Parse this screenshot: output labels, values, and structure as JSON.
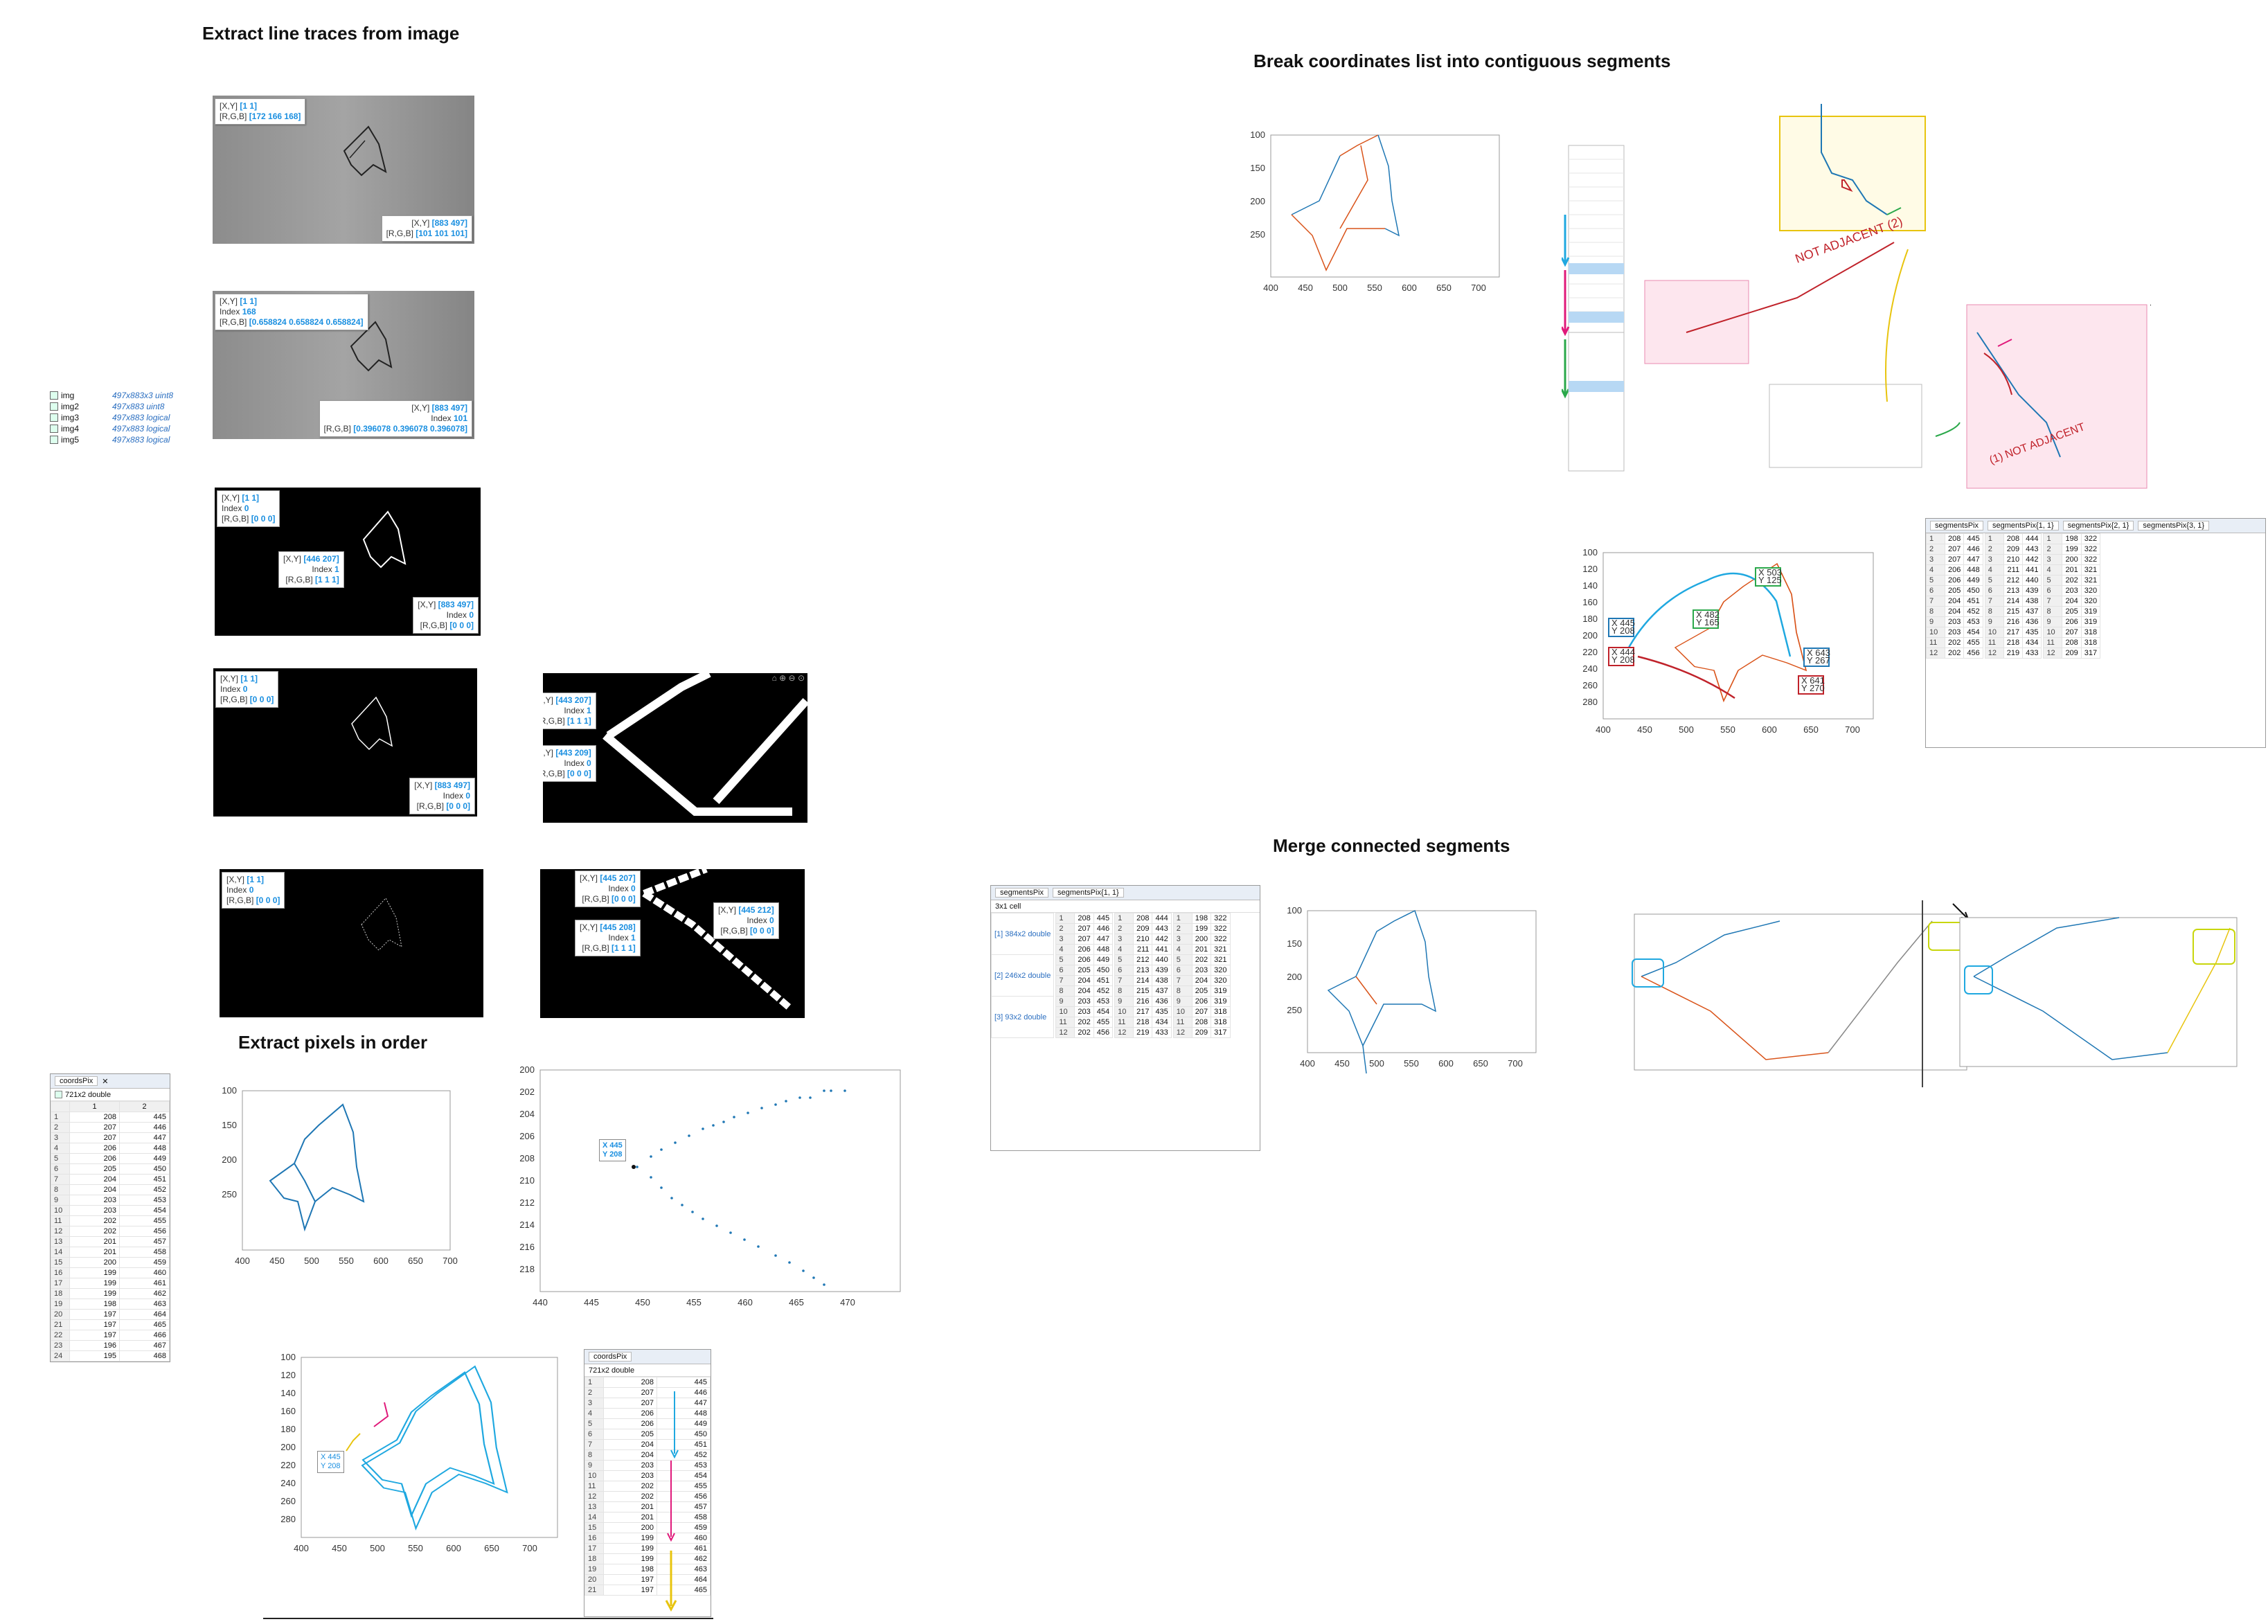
{
  "titles": {
    "extract_line": "Extract line traces from image",
    "extract_pixels": "Extract pixels in order",
    "break_coords": "Break coordinates list into contiguous segments",
    "merge": "Merge connected segments"
  },
  "datatips": {
    "p1a": {
      "xy_label": "[X,Y]",
      "xy": "[1 1]",
      "rgb_label": "[R,G,B]",
      "rgb": "[172 166 168]"
    },
    "p1b": {
      "xy_label": "[X,Y]",
      "xy": "[883 497]",
      "rgb_label": "[R,G,B]",
      "rgb": "[101 101 101]"
    },
    "p2a": {
      "xy_label": "[X,Y]",
      "xy": "[1 1]",
      "idx_label": "Index",
      "idx": "168",
      "rgb_label": "[R,G,B]",
      "rgb": "[0.658824 0.658824 0.658824]"
    },
    "p2b": {
      "xy_label": "[X,Y]",
      "xy": "[883 497]",
      "idx_label": "Index",
      "idx": "101",
      "rgb_label": "[R,G,B]",
      "rgb": "[0.396078 0.396078 0.396078]"
    },
    "p3a": {
      "xy_label": "[X,Y]",
      "xy": "[1 1]",
      "idx_label": "Index",
      "idx": "0",
      "rgb_label": "[R,G,B]",
      "rgb": "[0 0 0]"
    },
    "p3b": {
      "xy_label": "[X,Y]",
      "xy": "[446 207]",
      "idx_label": "Index",
      "idx": "1",
      "rgb_label": "[R,G,B]",
      "rgb": "[1 1 1]"
    },
    "p3c": {
      "xy_label": "[X,Y]",
      "xy": "[883 497]",
      "idx_label": "Index",
      "idx": "0",
      "rgb_label": "[R,G,B]",
      "rgb": "[0 0 0]"
    },
    "p4a": {
      "xy_label": "[X,Y]",
      "xy": "[1 1]",
      "idx_label": "Index",
      "idx": "0",
      "rgb_label": "[R,G,B]",
      "rgb": "[0 0 0]"
    },
    "p4b": {
      "xy_label": "[X,Y]",
      "xy": "[883 497]",
      "idx_label": "Index",
      "idx": "0",
      "rgb_label": "[R,G,B]",
      "rgb": "[0 0 0]"
    },
    "z1a": {
      "xy_label": "[X,Y]",
      "xy": "[443 207]",
      "idx_label": "Index",
      "idx": "1",
      "rgb_label": "[R,G,B]",
      "rgb": "[1 1 1]"
    },
    "z1b": {
      "xy_label": "[X,Y]",
      "xy": "[443 209]",
      "idx_label": "Index",
      "idx": "0",
      "rgb_label": "[R,G,B]",
      "rgb": "[0 0 0]"
    },
    "p5a": {
      "xy_label": "[X,Y]",
      "xy": "[1 1]",
      "idx_label": "Index",
      "idx": "0",
      "rgb_label": "[R,G,B]",
      "rgb": "[0 0 0]"
    },
    "z2a": {
      "xy_label": "[X,Y]",
      "xy": "[445 207]",
      "idx_label": "Index",
      "idx": "0",
      "rgb_label": "[R,G,B]",
      "rgb": "[0 0 0]"
    },
    "z2b": {
      "xy_label": "[X,Y]",
      "xy": "[445 208]",
      "idx_label": "Index",
      "idx": "1",
      "rgb_label": "[R,G,B]",
      "rgb": "[1 1 1]"
    },
    "z2c": {
      "xy_label": "[X,Y]",
      "xy": "[445 212]",
      "idx_label": "Index",
      "idx": "0",
      "rgb_label": "[R,G,B]",
      "rgb": "[0 0 0]"
    }
  },
  "workspace": [
    {
      "name": "img",
      "size": "497x883x3 uint8"
    },
    {
      "name": "img2",
      "size": "497x883 uint8"
    },
    {
      "name": "img3",
      "size": "497x883 logical"
    },
    {
      "name": "img4",
      "size": "497x883 logical"
    },
    {
      "name": "img5",
      "size": "497x883 logical"
    }
  ],
  "coords_table": {
    "tab": "coordsPix",
    "desc": "721x2 double",
    "cols": [
      "1",
      "2"
    ],
    "rows": [
      [
        "1",
        "208",
        "445"
      ],
      [
        "2",
        "207",
        "446"
      ],
      [
        "3",
        "207",
        "447"
      ],
      [
        "4",
        "206",
        "448"
      ],
      [
        "5",
        "206",
        "449"
      ],
      [
        "6",
        "205",
        "450"
      ],
      [
        "7",
        "204",
        "451"
      ],
      [
        "8",
        "204",
        "452"
      ],
      [
        "9",
        "203",
        "453"
      ],
      [
        "10",
        "203",
        "454"
      ],
      [
        "11",
        "202",
        "455"
      ],
      [
        "12",
        "202",
        "456"
      ],
      [
        "13",
        "201",
        "457"
      ],
      [
        "14",
        "201",
        "458"
      ],
      [
        "15",
        "200",
        "459"
      ],
      [
        "16",
        "199",
        "460"
      ],
      [
        "17",
        "199",
        "461"
      ],
      [
        "18",
        "199",
        "462"
      ],
      [
        "19",
        "198",
        "463"
      ],
      [
        "20",
        "197",
        "464"
      ],
      [
        "21",
        "197",
        "465"
      ],
      [
        "22",
        "197",
        "466"
      ],
      [
        "23",
        "196",
        "467"
      ],
      [
        "24",
        "195",
        "468"
      ]
    ]
  },
  "zoom_plot": {
    "datatip": {
      "x": "X 445",
      "y": "Y 208"
    },
    "xticks": [
      "440",
      "445",
      "450",
      "455",
      "460",
      "465",
      "470"
    ],
    "yticks": [
      "200",
      "202",
      "204",
      "206",
      "208",
      "210",
      "212",
      "214",
      "216",
      "218"
    ]
  },
  "annot_plot": {
    "datatip": {
      "x": "X 445",
      "y": "Y 208"
    }
  },
  "segment_tables": {
    "left_tab": "segmentsPix",
    "left_desc": "3x1 cell",
    "left_rows": [
      "[1] 384x2 double",
      "[2] 246x2 double",
      "[3] 93x2 double"
    ],
    "t1": "segmentsPix{1, 1}",
    "t2": "segmentsPix{2, 1}",
    "t3": "segmentsPix{3, 1}",
    "t1_rows": [
      [
        "208",
        "445"
      ],
      [
        "207",
        "446"
      ],
      [
        "207",
        "447"
      ],
      [
        "206",
        "448"
      ],
      [
        "206",
        "449"
      ],
      [
        "205",
        "450"
      ],
      [
        "204",
        "451"
      ],
      [
        "204",
        "452"
      ],
      [
        "203",
        "453"
      ],
      [
        "203",
        "454"
      ],
      [
        "202",
        "455"
      ],
      [
        "202",
        "456"
      ]
    ],
    "t2_rows": [
      [
        "208",
        "444"
      ],
      [
        "209",
        "443"
      ],
      [
        "210",
        "442"
      ],
      [
        "211",
        "441"
      ],
      [
        "212",
        "440"
      ],
      [
        "213",
        "439"
      ],
      [
        "214",
        "438"
      ],
      [
        "215",
        "437"
      ],
      [
        "216",
        "436"
      ],
      [
        "217",
        "435"
      ],
      [
        "218",
        "434"
      ],
      [
        "219",
        "433"
      ]
    ],
    "t3_rows": [
      [
        "198",
        "322"
      ],
      [
        "199",
        "322"
      ],
      [
        "200",
        "322"
      ],
      [
        "201",
        "321"
      ],
      [
        "202",
        "321"
      ],
      [
        "203",
        "320"
      ],
      [
        "204",
        "320"
      ],
      [
        "205",
        "319"
      ],
      [
        "206",
        "319"
      ],
      [
        "207",
        "318"
      ],
      [
        "208",
        "318"
      ],
      [
        "209",
        "317"
      ]
    ]
  },
  "break_plot": {
    "xticks": [
      "400",
      "450",
      "500",
      "550",
      "600",
      "650",
      "700"
    ],
    "yticks": [
      "100",
      "150",
      "200",
      "250"
    ]
  },
  "annot_right": {
    "tips": [
      {
        "x": "X 503",
        "y": "Y 125"
      },
      {
        "x": "X 482",
        "y": "Y 165"
      },
      {
        "x": "X 445",
        "y": "Y 208"
      },
      {
        "x": "X 444",
        "y": "Y 208"
      },
      {
        "x": "X 643",
        "y": "Y 267"
      },
      {
        "x": "X 641",
        "y": "Y 270"
      }
    ],
    "labels": [
      "Not Adjacent (2)",
      "Not Adjacent (1)"
    ]
  },
  "merge_plot": {
    "xticks": [
      "400",
      "450",
      "500",
      "550",
      "600",
      "650",
      "700"
    ],
    "yticks": [
      "100",
      "150",
      "200",
      "250"
    ]
  },
  "colors": {
    "blue": "#1f77b4",
    "orange": "#d95319",
    "datatip": "#1a8fe0",
    "cyan": "#1fa8e0",
    "magenta": "#e0197a",
    "yellow": "#e8c40e",
    "green": "#2aa84a",
    "red": "#c0222a"
  }
}
